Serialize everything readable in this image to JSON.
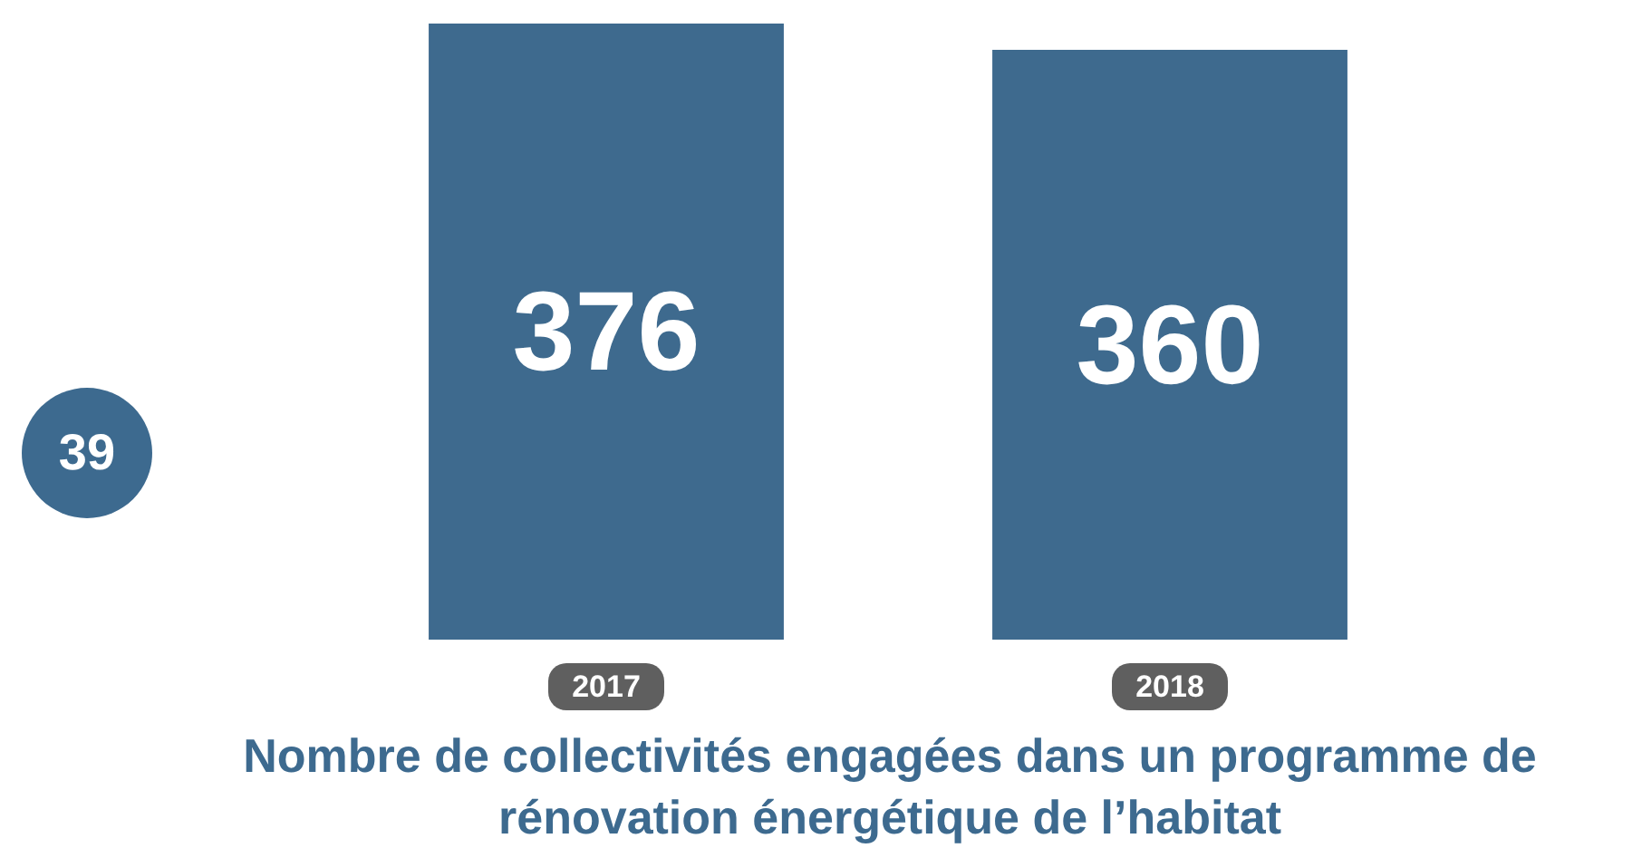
{
  "chart_data": {
    "type": "bar",
    "title": "Nombre de collectivités engagées dans un programme de rénovation énergétique de l’habitat",
    "categories": [
      "2017",
      "2018"
    ],
    "values": [
      376,
      360
    ],
    "color": "#3e6a8e",
    "data_labels": true,
    "annotations": [
      "39"
    ]
  }
}
